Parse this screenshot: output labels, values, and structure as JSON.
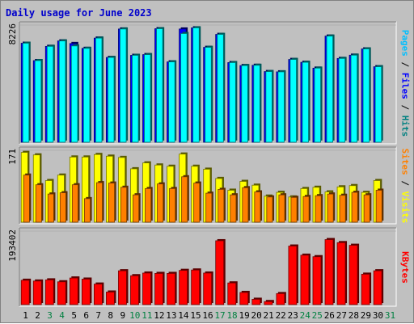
{
  "chart_data": {
    "type": "bar",
    "title": "Daily usage for June 2023",
    "days": [
      "1",
      "2",
      "3",
      "4",
      "5",
      "6",
      "7",
      "8",
      "9",
      "10",
      "11",
      "12",
      "13",
      "14",
      "15",
      "16",
      "17",
      "18",
      "19",
      "20",
      "21",
      "22",
      "23",
      "24",
      "25",
      "26",
      "27",
      "28",
      "29",
      "30",
      "31"
    ],
    "weekend_color": "#008040",
    "weekday_color": "#000000",
    "weekend_days": [
      "3",
      "4",
      "10",
      "11",
      "17",
      "18",
      "24",
      "25",
      "31"
    ],
    "panels": [
      {
        "name": "pages-files-hits",
        "max_label": "8226",
        "max_value": 8226,
        "series": [
          {
            "name": "Pages",
            "color": "#00bfff",
            "values": [
              null,
              null,
              null,
              null,
              null,
              null,
              null,
              null,
              null,
              null,
              null,
              null,
              null,
              null,
              null,
              null,
              null,
              null,
              null,
              null,
              null,
              null,
              null,
              null,
              null,
              null,
              null,
              null,
              null,
              null,
              null
            ]
          },
          {
            "name": "Files",
            "color": "#0000ff",
            "values": [
              6950,
              5730,
              6730,
              7110,
              6930,
              6590,
              7310,
              5950,
              7950,
              6100,
              6150,
              7970,
              5640,
              7950,
              8030,
              6660,
              7570,
              5590,
              5380,
              5400,
              4960,
              4940,
              5810,
              5610,
              5200,
              7450,
              5880,
              6110,
              6550,
              5300,
              null
            ]
          },
          {
            "name": "Hits",
            "color": "#00ffff",
            "values": [
              6950,
              5730,
              6730,
              7110,
              6760,
              6590,
              7310,
              5950,
              7950,
              6100,
              6150,
              7970,
              5640,
              7630,
              8030,
              6660,
              7570,
              5590,
              5380,
              5400,
              4960,
              4940,
              5810,
              5610,
              5200,
              7450,
              5880,
              6110,
              6550,
              5300,
              null
            ]
          }
        ],
        "axis_label": {
          "parts": [
            {
              "text": "Pages",
              "color": "#00bfff"
            },
            {
              "text": " / ",
              "color": "#000000"
            },
            {
              "text": "Files",
              "color": "#0000ff"
            },
            {
              "text": " / ",
              "color": "#000000"
            },
            {
              "text": "Hits",
              "color": "#008080"
            }
          ]
        }
      },
      {
        "name": "sites-visits",
        "max_label": "171",
        "max_value": 171,
        "series": [
          {
            "name": "Visits",
            "color": "#ffff00",
            "values": [
              166,
              160,
              99,
              112,
              155,
              155,
              161,
              157,
              154,
              127,
              141,
              136,
              133,
              162,
              133,
              126,
              104,
              76,
              97,
              88,
              62,
              71,
              60,
              80,
              83,
              72,
              84,
              87,
              71,
              99,
              null
            ]
          },
          {
            "name": "Sites",
            "color": "#ff8000",
            "values": [
              112,
              89,
              67,
              70,
              89,
              56,
              94,
              93,
              83,
              65,
              80,
              91,
              80,
              108,
              93,
              69,
              78,
              65,
              82,
              72,
              60,
              65,
              59,
              61,
              63,
              67,
              64,
              71,
              65,
              76,
              null
            ]
          }
        ],
        "axis_label": {
          "parts": [
            {
              "text": "Sites",
              "color": "#ff8000"
            },
            {
              "text": " / ",
              "color": "#000000"
            },
            {
              "text": "Visits",
              "color": "#ffff00"
            }
          ]
        }
      },
      {
        "name": "kbytes",
        "max_label": "193402",
        "max_value": 193402,
        "series": [
          {
            "name": "KBytes",
            "color": "#ff0000",
            "values": [
              64000,
              62000,
              65000,
              60000,
              70000,
              67000,
              54000,
              33000,
              89000,
              76000,
              83000,
              82000,
              82000,
              90000,
              91000,
              83000,
              168000,
              57000,
              32000,
              14000,
              8000,
              29000,
              154000,
              130000,
              126000,
              171000,
              163000,
              156000,
              80000,
              89000,
              null
            ]
          }
        ],
        "axis_label": {
          "parts": [
            {
              "text": "KBytes",
              "color": "#ff0000"
            }
          ]
        }
      }
    ]
  }
}
